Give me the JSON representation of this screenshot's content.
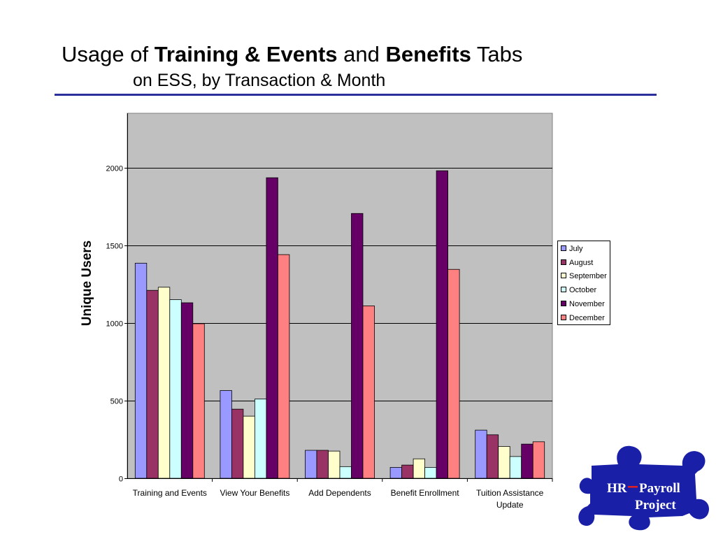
{
  "title": {
    "part1": "Usage of ",
    "bold1": "Training & Events",
    "part2": " and ",
    "bold2": "Benefits",
    "part3": " Tabs",
    "line2": "on ESS, by Transaction & Month"
  },
  "logo": {
    "line1_left": "HR",
    "line1_right": "Payroll",
    "line2": "Project",
    "icon": "puzzle-piece-icon"
  },
  "colors": {
    "plot_background": "#c0c0c0",
    "title_rule": "#2b2f9c",
    "logo_puzzle": "#1a1fa8"
  },
  "chart_data": {
    "type": "bar",
    "title": "",
    "xlabel": "",
    "ylabel": "Unique Users",
    "ylim": [
      0,
      2350
    ],
    "yticks": [
      0,
      500,
      1000,
      1500,
      2000
    ],
    "grid": true,
    "legend_position": "right",
    "categories": [
      "Training and Events",
      "View Your Benefits",
      "Add Dependents",
      "Benefit Enrollment",
      "Tuition Assistance Update"
    ],
    "series": [
      {
        "name": "July",
        "color": "#9999ff",
        "values": [
          1385,
          565,
          180,
          70,
          310
        ]
      },
      {
        "name": "August",
        "color": "#993366",
        "values": [
          1210,
          445,
          180,
          85,
          280
        ]
      },
      {
        "name": "September",
        "color": "#ffffcc",
        "values": [
          1230,
          400,
          175,
          125,
          205
        ]
      },
      {
        "name": "October",
        "color": "#ccffff",
        "values": [
          1150,
          510,
          75,
          70,
          140
        ]
      },
      {
        "name": "November",
        "color": "#660066",
        "values": [
          1130,
          1935,
          1705,
          1980,
          220
        ]
      },
      {
        "name": "December",
        "color": "#ff8080",
        "values": [
          995,
          1440,
          1110,
          1345,
          235
        ]
      }
    ]
  }
}
